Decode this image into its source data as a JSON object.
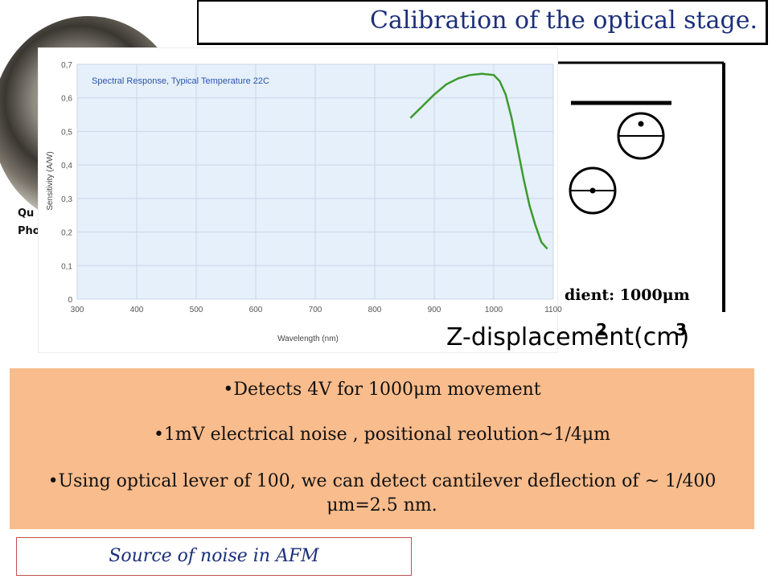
{
  "slide": {
    "title": "Calibration of the optical stage.",
    "photo_labels": [
      "Qu",
      "Pho"
    ],
    "diagram_label": "dient: 1000μm",
    "x_ticks": [
      "2",
      "3"
    ],
    "x_axis_title": "Z-displacement(cm)",
    "bullets": [
      "•Detects 4V for 1000μm movement",
      "•1mV electrical noise , positional reolution~1/4μm",
      "•Using optical lever of  100, we can detect cantilever deflection of  ~ 1/400 μm=2.5 nm."
    ],
    "note": "Source of noise in AFM"
  },
  "chart_data": {
    "type": "line",
    "title": "Spectral Response, Typical Temperature 22C",
    "xlabel": "Wavelength (nm)",
    "ylabel": "Sensitivity (A/W)",
    "xlim": [
      300,
      1100
    ],
    "ylim": [
      0,
      0.7
    ],
    "x_ticks": [
      "300",
      "400",
      "500",
      "600",
      "700",
      "800",
      "900",
      "1000",
      "1100"
    ],
    "y_ticks": [
      "0",
      "0,1",
      "0,2",
      "0,3",
      "0,4",
      "0,5",
      "0,6",
      "0,7"
    ],
    "grid": true,
    "line_color": "#3c9a2e",
    "series": [
      {
        "x": [
          860,
          880,
          900,
          920,
          940,
          960,
          980,
          1000,
          1010,
          1020,
          1030,
          1040,
          1050,
          1060,
          1070,
          1080,
          1090
        ],
        "values": [
          0.54,
          0.575,
          0.61,
          0.64,
          0.658,
          0.668,
          0.672,
          0.668,
          0.65,
          0.61,
          0.54,
          0.45,
          0.36,
          0.28,
          0.22,
          0.17,
          0.15
        ]
      }
    ]
  }
}
